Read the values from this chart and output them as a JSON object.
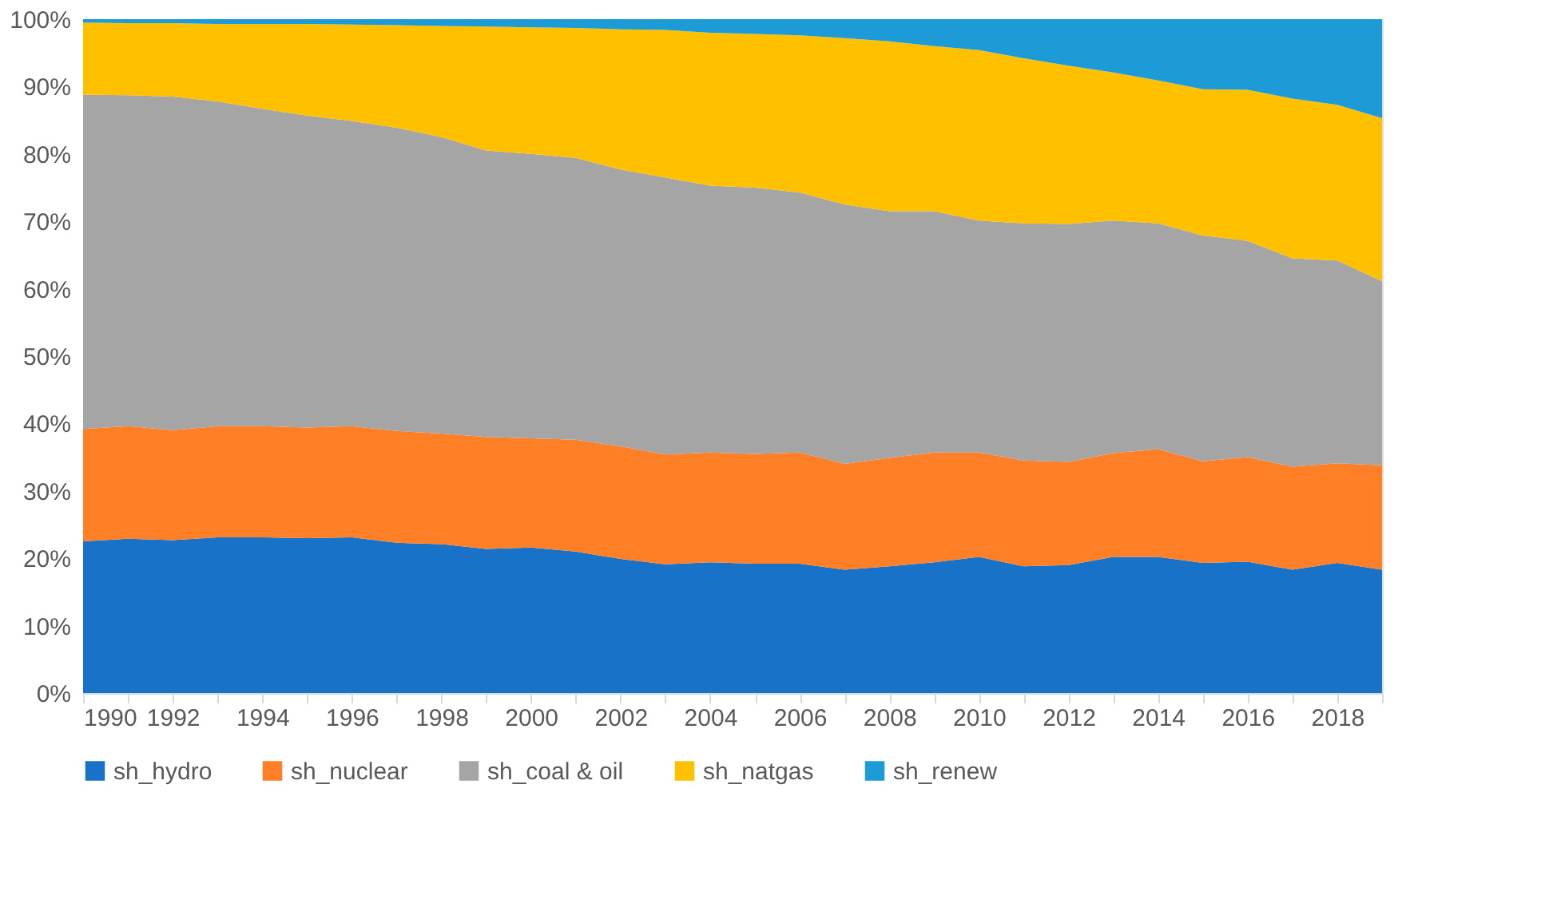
{
  "chart_data": {
    "type": "area",
    "stacked": true,
    "x": [
      1990,
      1991,
      1992,
      1993,
      1994,
      1995,
      1996,
      1997,
      1998,
      1999,
      2000,
      2001,
      2002,
      2003,
      2004,
      2005,
      2006,
      2007,
      2008,
      2009,
      2010,
      2011,
      2012,
      2013,
      2014,
      2015,
      2016,
      2017,
      2018,
      2019
    ],
    "series": [
      {
        "name": "sh_hydro",
        "color": "#1772c8",
        "values": [
          22.5,
          22.9,
          22.7,
          23.1,
          23.1,
          23.0,
          23.1,
          22.3,
          22.1,
          21.4,
          21.6,
          21.0,
          19.9,
          19.1,
          19.4,
          19.2,
          19.2,
          18.3,
          18.8,
          19.4,
          20.2,
          18.8,
          19.0,
          20.2,
          20.2,
          19.3,
          19.5,
          18.3,
          19.3,
          18.3
        ]
      },
      {
        "name": "sh_nuclear",
        "color": "#ff7f27",
        "values": [
          16.7,
          16.7,
          16.3,
          16.5,
          16.5,
          16.4,
          16.5,
          16.6,
          16.4,
          16.6,
          16.2,
          16.6,
          16.7,
          16.3,
          16.3,
          16.3,
          16.5,
          15.7,
          16.1,
          16.3,
          15.5,
          15.7,
          15.3,
          15.4,
          16.0,
          15.1,
          15.5,
          15.3,
          14.8,
          15.5
        ]
      },
      {
        "name": "sh_coal & oil",
        "color": "#a5a5a5",
        "values": [
          49.6,
          49.1,
          49.5,
          48.2,
          47.1,
          46.3,
          45.3,
          45.0,
          44.0,
          42.5,
          42.2,
          41.8,
          41.1,
          41.1,
          39.6,
          39.5,
          38.6,
          38.5,
          36.6,
          35.8,
          34.4,
          35.2,
          35.3,
          34.5,
          33.5,
          33.5,
          32.1,
          30.9,
          30.1,
          27.3
        ]
      },
      {
        "name": "sh_natgas",
        "color": "#ffc000",
        "values": [
          10.7,
          10.7,
          10.9,
          11.5,
          12.6,
          13.6,
          14.3,
          15.2,
          16.5,
          18.4,
          18.8,
          19.3,
          20.8,
          21.9,
          22.7,
          22.8,
          23.3,
          24.7,
          25.2,
          24.5,
          25.3,
          24.5,
          23.5,
          22.0,
          21.2,
          21.7,
          22.4,
          23.7,
          23.1,
          24.2
        ]
      },
      {
        "name": "sh_renew",
        "color": "#1c9bd7",
        "values": [
          0.5,
          0.6,
          0.6,
          0.7,
          0.7,
          0.7,
          0.8,
          0.9,
          1.0,
          1.1,
          1.2,
          1.3,
          1.5,
          1.6,
          2.0,
          2.2,
          2.4,
          2.8,
          3.3,
          4.0,
          4.6,
          5.8,
          6.9,
          7.9,
          9.1,
          10.4,
          10.5,
          11.8,
          12.7,
          14.7
        ]
      }
    ],
    "xlim": [
      1990,
      2019
    ],
    "xticks": [
      1990,
      {
        "value": 1991,
        "label": null
      },
      1992,
      {
        "value": 1993,
        "label": null
      },
      1994,
      {
        "value": 1995,
        "label": null
      },
      1996,
      {
        "value": 1997,
        "label": null
      },
      1998,
      {
        "value": 1999,
        "label": null
      },
      2000,
      {
        "value": 2001,
        "label": null
      },
      2002,
      {
        "value": 2003,
        "label": null
      },
      2004,
      {
        "value": 2005,
        "label": null
      },
      2006,
      {
        "value": 2007,
        "label": null
      },
      2008,
      {
        "value": 2009,
        "label": null
      },
      2010,
      {
        "value": 2011,
        "label": null
      },
      2012,
      {
        "value": 2013,
        "label": null
      },
      2014,
      {
        "value": 2015,
        "label": null
      },
      2016,
      {
        "value": 2017,
        "label": null
      },
      2018,
      {
        "value": 2019,
        "label": null
      }
    ],
    "ylim": [
      0,
      100
    ],
    "yticks": [
      {
        "value": 0,
        "label": "0%"
      },
      {
        "value": 10,
        "label": "10%"
      },
      {
        "value": 20,
        "label": "20%"
      },
      {
        "value": 30,
        "label": "30%"
      },
      {
        "value": 40,
        "label": "40%"
      },
      {
        "value": 50,
        "label": "50%"
      },
      {
        "value": 60,
        "label": "60%"
      },
      {
        "value": 70,
        "label": "70%"
      },
      {
        "value": 80,
        "label": "80%"
      },
      {
        "value": 90,
        "label": "90%"
      },
      {
        "value": 100,
        "label": "100%"
      }
    ],
    "legend": "bottom",
    "grid": false
  }
}
